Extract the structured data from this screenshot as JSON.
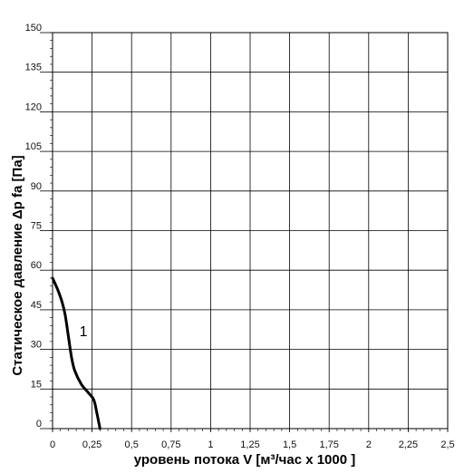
{
  "chart_data": {
    "type": "line",
    "xlabel": "уровень потока  V [м³/час x 1000 ]",
    "ylabel": "Статическое давление  Δp fa [Па]",
    "xlim": [
      0,
      2.5
    ],
    "ylim": [
      0,
      150
    ],
    "x_ticks": [
      "0",
      "0,25",
      "0,5",
      "0,75",
      "1",
      "1,25",
      "1,5",
      "1,75",
      "2",
      "2,25",
      "2,5"
    ],
    "y_ticks": [
      "0",
      "15",
      "30",
      "45",
      "60",
      "75",
      "90",
      "105",
      "120",
      "135",
      "150"
    ],
    "x_tick_values": [
      0,
      0.25,
      0.5,
      0.75,
      1,
      1.25,
      1.5,
      1.75,
      2,
      2.25,
      2.5
    ],
    "y_tick_values": [
      0,
      15,
      30,
      45,
      60,
      75,
      90,
      105,
      120,
      135,
      150
    ],
    "grid": true,
    "series": [
      {
        "name": "1",
        "x": [
          0,
          0.03,
          0.06,
          0.08,
          0.1,
          0.12,
          0.14,
          0.18,
          0.22,
          0.26,
          0.28,
          0.3
        ],
        "y": [
          57,
          53,
          48,
          43,
          35,
          27,
          22,
          17,
          14,
          11,
          6,
          0
        ]
      }
    ]
  }
}
